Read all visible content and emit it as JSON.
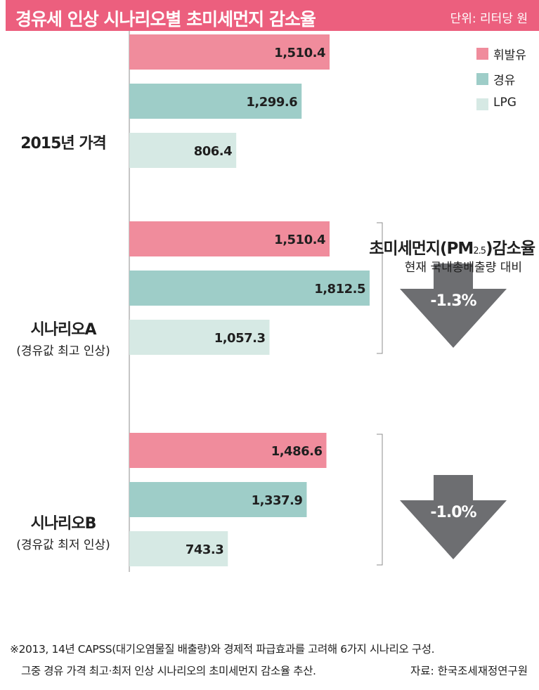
{
  "header": {
    "title": "경유세 인상 시나리오별 초미세먼지 감소율",
    "unit": "단위: 리터당 원"
  },
  "pm_panel": {
    "title_prefix": "초미세먼지(PM",
    "title_sub": "2.5",
    "title_suffix": ")감소율",
    "subtitle": "현재 국내총배출량 대비"
  },
  "footnote": {
    "line1": "※2013, 14년 CAPSS(대기오염물질 배출량)와 경제적 파급효과를 고려해 6가지 시나리오 구성.",
    "line2": "그중 경유 가격 최고·최저 인상 시나리오의 초미세먼지 감소율 추산.",
    "source": "자료: 한국조세재정연구원"
  },
  "colors": {
    "header": "#ec5f7e",
    "gasoline": "#f08c9c",
    "diesel": "#9ecdc8",
    "lpg": "#d6e9e4",
    "arrow": "#6d6e71"
  },
  "chart_data": {
    "type": "bar",
    "orientation": "horizontal",
    "groups": [
      {
        "label": "2015년 가격",
        "sublabel": "",
        "reduction": ""
      },
      {
        "label": "시나리오A",
        "sublabel": "(경유값 최고 인상)",
        "reduction": "-1.3%"
      },
      {
        "label": "시나리오B",
        "sublabel": "(경유값 최저 인상)",
        "reduction": "-1.0%"
      }
    ],
    "series": [
      {
        "name": "휘발유",
        "values": [
          1510.4,
          1510.4,
          1486.6
        ],
        "labels": [
          "1,510.4",
          "1,510.4",
          "1,486.6"
        ]
      },
      {
        "name": "경유",
        "values": [
          1299.6,
          1812.5,
          1337.9
        ],
        "labels": [
          "1,299.6",
          "1,812.5",
          "1,337.9"
        ]
      },
      {
        "name": "LPG",
        "values": [
          806.4,
          1057.3,
          743.3
        ],
        "labels": [
          "806.4",
          "1,057.3",
          "743.3"
        ]
      }
    ],
    "xlim": [
      0,
      2000
    ],
    "legend": "top-right"
  }
}
